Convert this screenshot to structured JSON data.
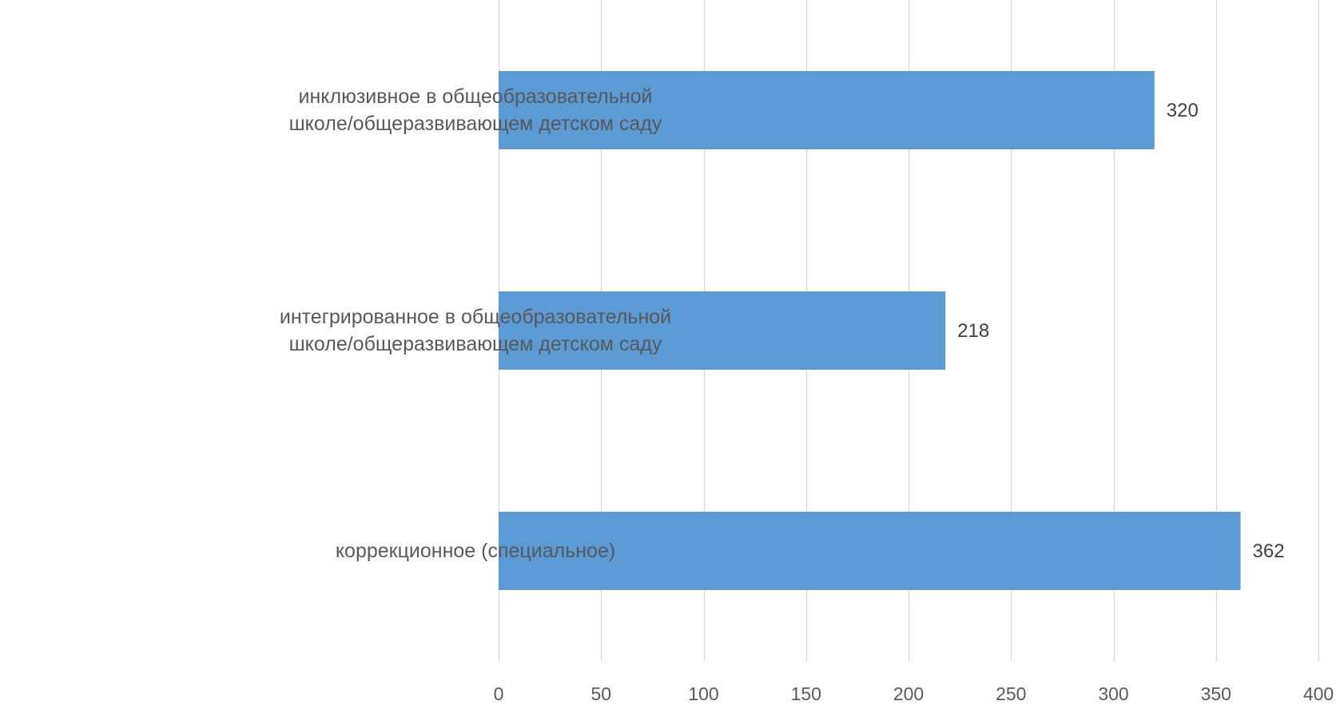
{
  "chart_data": {
    "type": "bar",
    "orientation": "horizontal",
    "categories": [
      [
        "инклюзивное в общеобразовательной",
        "школе/общеразвивающем детском саду"
      ],
      [
        "интегрированное в общеобразовательной",
        "школе/общеразвивающем детском саду"
      ],
      [
        "коррекционное (специальное)"
      ]
    ],
    "values": [
      320,
      218,
      362
    ],
    "data_labels": [
      "320",
      "218",
      "362"
    ],
    "xlim": [
      0,
      400
    ],
    "xticks": [
      0,
      50,
      100,
      150,
      200,
      250,
      300,
      350,
      400
    ],
    "grid": "vertical",
    "bar_color": "#5b9bd5",
    "title": "",
    "xlabel": "",
    "ylabel": ""
  }
}
